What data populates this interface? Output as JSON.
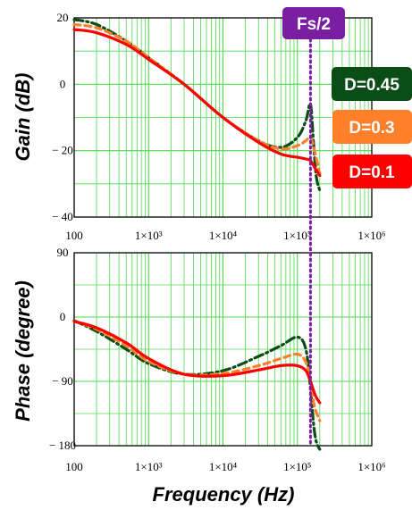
{
  "colors": {
    "grid": "#4cd94c",
    "frame": "#000000",
    "marker": "#7b1fa2",
    "d045": "#0b4d16",
    "d03": "#ff7f2a",
    "d01": "#ff0000"
  },
  "chart_data": [
    {
      "type": "line",
      "ylabel": "Gain (dB)",
      "xlabel": "",
      "xscale": "log",
      "xlim": [
        100,
        1000000
      ],
      "ylim": [
        -40,
        20
      ],
      "xticks": [
        100,
        1000,
        10000,
        100000,
        1000000
      ],
      "xtick_labels": [
        "100",
        "1×10³",
        "1×10⁴",
        "1×10⁵",
        "1×10⁶"
      ],
      "yticks": [
        20,
        0,
        -20,
        -40
      ],
      "ytick_labels": [
        "20",
        "0",
        "− 20",
        "− 40"
      ],
      "grid": true,
      "series": [
        {
          "name": "D=0.45",
          "color": "#0b4d16",
          "style": "dashdot",
          "x": [
            100,
            200,
            500,
            1000,
            3000,
            10000,
            30000,
            60000,
            100000,
            130000,
            150000,
            165000,
            180000,
            200000
          ],
          "y": [
            19.5,
            18,
            13,
            8,
            0,
            -10,
            -17,
            -19,
            -16,
            -11,
            -6,
            -18,
            -28,
            -32
          ]
        },
        {
          "name": "D=0.3",
          "color": "#ff7f2a",
          "style": "dash",
          "x": [
            100,
            200,
            500,
            1000,
            3000,
            10000,
            30000,
            60000,
            100000,
            130000,
            150000,
            170000,
            200000
          ],
          "y": [
            18,
            17,
            13,
            8,
            0,
            -10,
            -17,
            -19.5,
            -18.5,
            -17,
            -16,
            -20,
            -27
          ]
        },
        {
          "name": "D=0.1",
          "color": "#ff0000",
          "style": "solid",
          "x": [
            100,
            200,
            500,
            1000,
            3000,
            10000,
            30000,
            60000,
            100000,
            130000,
            150000,
            175000,
            200000
          ],
          "y": [
            16.5,
            15.5,
            12,
            7.5,
            0,
            -10,
            -17.5,
            -21,
            -22,
            -22.5,
            -23,
            -25.5,
            -27.5
          ]
        }
      ],
      "annotations": [
        {
          "text": "Fs/2",
          "x": 150000
        },
        {
          "text": "D=0.45"
        },
        {
          "text": "D=0.3"
        },
        {
          "text": "D=0.1"
        }
      ]
    },
    {
      "type": "line",
      "ylabel": "Phase (degree)",
      "xlabel": "Frequency (Hz)",
      "xscale": "log",
      "xlim": [
        100,
        1000000
      ],
      "ylim": [
        -180,
        90
      ],
      "xticks": [
        100,
        1000,
        10000,
        100000,
        1000000
      ],
      "xtick_labels": [
        "100",
        "1×10³",
        "1×10⁴",
        "1×10⁵",
        "1×10⁶"
      ],
      "yticks": [
        90,
        0,
        -90,
        -180
      ],
      "ytick_labels": [
        "90",
        "0",
        "− 90",
        "− 180"
      ],
      "grid": true,
      "series": [
        {
          "name": "D=0.45",
          "color": "#0b4d16",
          "style": "dashdot",
          "x": [
            100,
            200,
            500,
            1000,
            3000,
            10000,
            30000,
            60000,
            100000,
            130000,
            150000,
            165000,
            180000,
            200000
          ],
          "y": [
            -5,
            -20,
            -45,
            -65,
            -80,
            -75,
            -55,
            -40,
            -28,
            -45,
            -100,
            -150,
            -175,
            -185
          ]
        },
        {
          "name": "D=0.3",
          "color": "#ff7f2a",
          "style": "dash",
          "x": [
            100,
            200,
            500,
            1000,
            3000,
            10000,
            30000,
            60000,
            100000,
            130000,
            150000,
            170000,
            200000
          ],
          "y": [
            -6,
            -17,
            -40,
            -62,
            -80,
            -79,
            -68,
            -58,
            -52,
            -63,
            -90,
            -125,
            -145
          ]
        },
        {
          "name": "D=0.1",
          "color": "#ff0000",
          "style": "solid",
          "x": [
            100,
            200,
            500,
            1000,
            3000,
            10000,
            30000,
            60000,
            100000,
            130000,
            150000,
            175000,
            200000
          ],
          "y": [
            -6,
            -15,
            -36,
            -58,
            -80,
            -82,
            -74,
            -68,
            -68,
            -75,
            -90,
            -110,
            -120
          ]
        }
      ]
    }
  ]
}
